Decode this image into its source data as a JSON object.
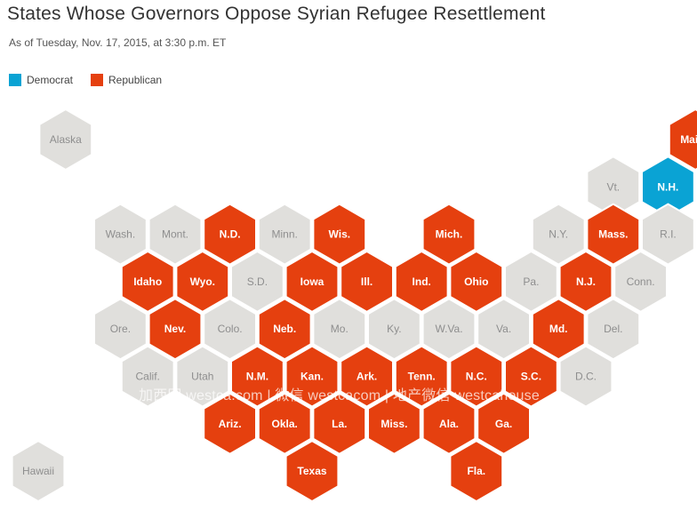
{
  "title": "States Whose Governors Oppose Syrian Refugee Resettlement",
  "subtitle": "As of Tuesday, Nov. 17, 2015, at 3:30 p.m. ET",
  "legend": {
    "democrat_label": "Democrat",
    "republican_label": "Republican"
  },
  "colors": {
    "democrat": "#0aa3d4",
    "republican": "#e5400f",
    "neutral": "#e0dfdc",
    "label_on_colored": "#ffffff",
    "label_on_neutral": "#8e8e8e"
  },
  "watermark": "加西网 westca.com | 微信 westcacom | 地产微信 westcahouse",
  "states": [
    {
      "label": "Alaska",
      "status": "neutral",
      "col": 1,
      "row": 1
    },
    {
      "label": "Maine",
      "status": "republican",
      "col": 24,
      "row": 1
    },
    {
      "label": "Vt.",
      "status": "neutral",
      "col": 21,
      "row": 2
    },
    {
      "label": "N.H.",
      "status": "democrat",
      "col": 23,
      "row": 2
    },
    {
      "label": "Wash.",
      "status": "neutral",
      "col": 3,
      "row": 3
    },
    {
      "label": "Mont.",
      "status": "neutral",
      "col": 5,
      "row": 3
    },
    {
      "label": "N.D.",
      "status": "republican",
      "col": 7,
      "row": 3
    },
    {
      "label": "Minn.",
      "status": "neutral",
      "col": 9,
      "row": 3
    },
    {
      "label": "Wis.",
      "status": "republican",
      "col": 11,
      "row": 3
    },
    {
      "label": "Mich.",
      "status": "republican",
      "col": 15,
      "row": 3
    },
    {
      "label": "N.Y.",
      "status": "neutral",
      "col": 19,
      "row": 3
    },
    {
      "label": "Mass.",
      "status": "republican",
      "col": 21,
      "row": 3
    },
    {
      "label": "R.I.",
      "status": "neutral",
      "col": 23,
      "row": 3
    },
    {
      "label": "Idaho",
      "status": "republican",
      "col": 4,
      "row": 4
    },
    {
      "label": "Wyo.",
      "status": "republican",
      "col": 6,
      "row": 4
    },
    {
      "label": "S.D.",
      "status": "neutral",
      "col": 8,
      "row": 4
    },
    {
      "label": "Iowa",
      "status": "republican",
      "col": 10,
      "row": 4
    },
    {
      "label": "Ill.",
      "status": "republican",
      "col": 12,
      "row": 4
    },
    {
      "label": "Ind.",
      "status": "republican",
      "col": 14,
      "row": 4
    },
    {
      "label": "Ohio",
      "status": "republican",
      "col": 16,
      "row": 4
    },
    {
      "label": "Pa.",
      "status": "neutral",
      "col": 18,
      "row": 4
    },
    {
      "label": "N.J.",
      "status": "republican",
      "col": 20,
      "row": 4
    },
    {
      "label": "Conn.",
      "status": "neutral",
      "col": 22,
      "row": 4
    },
    {
      "label": "Ore.",
      "status": "neutral",
      "col": 3,
      "row": 5
    },
    {
      "label": "Nev.",
      "status": "republican",
      "col": 5,
      "row": 5
    },
    {
      "label": "Colo.",
      "status": "neutral",
      "col": 7,
      "row": 5
    },
    {
      "label": "Neb.",
      "status": "republican",
      "col": 9,
      "row": 5
    },
    {
      "label": "Mo.",
      "status": "neutral",
      "col": 11,
      "row": 5
    },
    {
      "label": "Ky.",
      "status": "neutral",
      "col": 13,
      "row": 5
    },
    {
      "label": "W.Va.",
      "status": "neutral",
      "col": 15,
      "row": 5
    },
    {
      "label": "Va.",
      "status": "neutral",
      "col": 17,
      "row": 5
    },
    {
      "label": "Md.",
      "status": "republican",
      "col": 19,
      "row": 5
    },
    {
      "label": "Del.",
      "status": "neutral",
      "col": 21,
      "row": 5
    },
    {
      "label": "Calif.",
      "status": "neutral",
      "col": 4,
      "row": 6
    },
    {
      "label": "Utah",
      "status": "neutral",
      "col": 6,
      "row": 6
    },
    {
      "label": "N.M.",
      "status": "republican",
      "col": 8,
      "row": 6
    },
    {
      "label": "Kan.",
      "status": "republican",
      "col": 10,
      "row": 6
    },
    {
      "label": "Ark.",
      "status": "republican",
      "col": 12,
      "row": 6
    },
    {
      "label": "Tenn.",
      "status": "republican",
      "col": 14,
      "row": 6
    },
    {
      "label": "N.C.",
      "status": "republican",
      "col": 16,
      "row": 6
    },
    {
      "label": "S.C.",
      "status": "republican",
      "col": 18,
      "row": 6
    },
    {
      "label": "D.C.",
      "status": "neutral",
      "col": 20,
      "row": 6
    },
    {
      "label": "Ariz.",
      "status": "republican",
      "col": 7,
      "row": 7
    },
    {
      "label": "Okla.",
      "status": "republican",
      "col": 9,
      "row": 7
    },
    {
      "label": "La.",
      "status": "republican",
      "col": 11,
      "row": 7
    },
    {
      "label": "Miss.",
      "status": "republican",
      "col": 13,
      "row": 7
    },
    {
      "label": "Ala.",
      "status": "republican",
      "col": 15,
      "row": 7
    },
    {
      "label": "Ga.",
      "status": "republican",
      "col": 17,
      "row": 7
    },
    {
      "label": "Hawaii",
      "status": "neutral",
      "col": 0,
      "row": 8
    },
    {
      "label": "Texas",
      "status": "republican",
      "col": 10,
      "row": 8
    },
    {
      "label": "Fla.",
      "status": "republican",
      "col": 16,
      "row": 8
    }
  ]
}
